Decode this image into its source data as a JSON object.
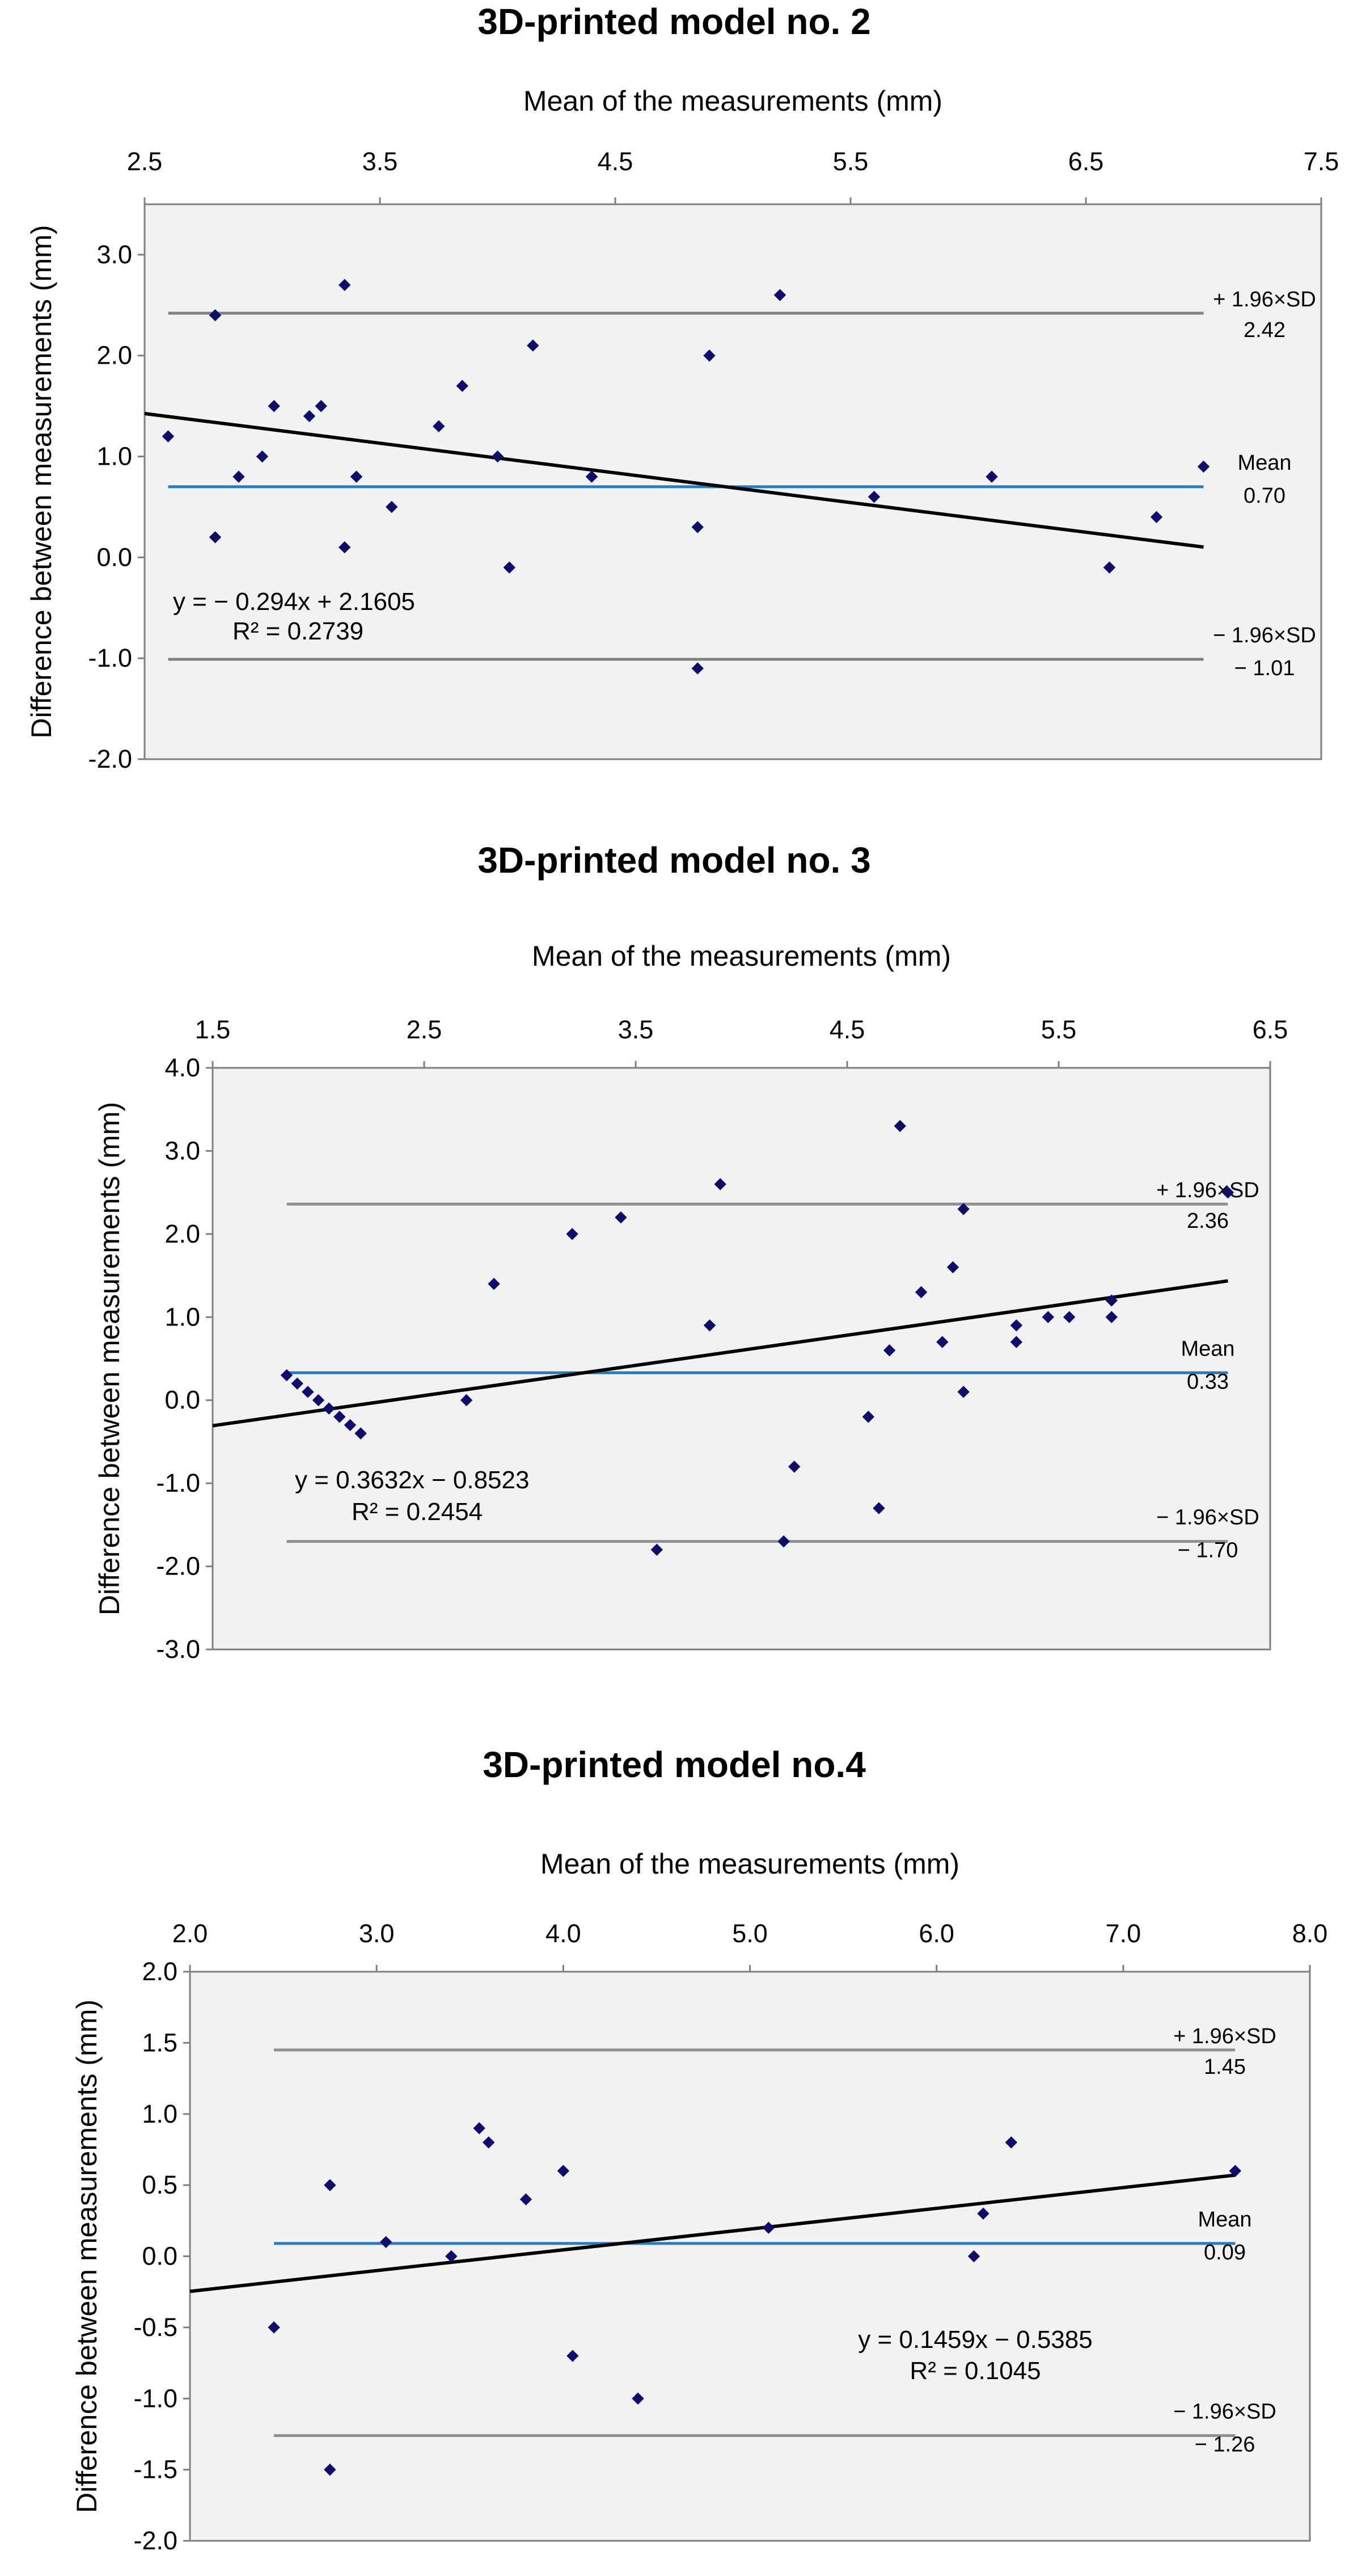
{
  "chart_data": [
    {
      "type": "scatter",
      "title": "3D-printed model no. 2",
      "xlabel": "Mean of the measurements (mm)",
      "ylabel": "Difference between measurements (mm)",
      "xlim": [
        2.5,
        7.5
      ],
      "ylim": [
        -2.0,
        3.5
      ],
      "xticks": [
        "2.5",
        "3.5",
        "4.5",
        "5.5",
        "6.5",
        "7.5"
      ],
      "yticks": [
        "3.0",
        "2.0",
        "1.0",
        "0.0",
        "-1.0",
        "-2.0"
      ],
      "points": [
        [
          2.6,
          1.2
        ],
        [
          2.8,
          2.4
        ],
        [
          2.8,
          0.2
        ],
        [
          2.9,
          0.8
        ],
        [
          3.0,
          1.0
        ],
        [
          3.05,
          1.5
        ],
        [
          3.2,
          1.4
        ],
        [
          3.25,
          1.5
        ],
        [
          3.35,
          2.7
        ],
        [
          3.35,
          0.1
        ],
        [
          3.4,
          0.8
        ],
        [
          3.55,
          0.5
        ],
        [
          3.75,
          1.3
        ],
        [
          3.85,
          1.7
        ],
        [
          4.0,
          1.0
        ],
        [
          4.05,
          -0.1
        ],
        [
          4.15,
          2.1
        ],
        [
          4.4,
          0.8
        ],
        [
          4.85,
          0.3
        ],
        [
          4.85,
          -1.1
        ],
        [
          4.9,
          2.0
        ],
        [
          5.2,
          2.6
        ],
        [
          5.6,
          0.6
        ],
        [
          6.1,
          0.8
        ],
        [
          6.6,
          -0.1
        ],
        [
          6.8,
          0.4
        ],
        [
          7.0,
          0.9
        ]
      ],
      "regression": {
        "slope": -0.294,
        "intercept": 2.1605,
        "x_range": [
          2.5,
          7.0
        ],
        "equation": "y = − 0.294x + 2.1605",
        "r2": "R² = 0.2739"
      },
      "mean_line": {
        "value": 0.7,
        "label": "Mean",
        "value_label": "0.70"
      },
      "upper_loa": {
        "value": 2.42,
        "label": "+ 1.96×SD",
        "value_label": "2.42"
      },
      "lower_loa": {
        "value": -1.01,
        "label": "− 1.96×SD",
        "value_label": "− 1.01"
      },
      "hline_x_range": [
        2.6,
        7.0
      ]
    },
    {
      "type": "scatter",
      "title": "3D-printed model no. 3",
      "xlabel": "Mean of the measurements (mm)",
      "ylabel": "Difference between measurements (mm)",
      "xlim": [
        1.5,
        6.5
      ],
      "ylim": [
        -3.0,
        4.0
      ],
      "xticks": [
        "1.5",
        "2.5",
        "3.5",
        "4.5",
        "5.5",
        "6.5"
      ],
      "yticks": [
        "4.0",
        "3.0",
        "2.0",
        "1.0",
        "0.0",
        "-1.0",
        "-2.0",
        "-3.0"
      ],
      "points": [
        [
          1.85,
          0.3
        ],
        [
          1.9,
          0.2
        ],
        [
          1.95,
          0.1
        ],
        [
          2.0,
          0.0
        ],
        [
          2.05,
          -0.1
        ],
        [
          2.1,
          -0.2
        ],
        [
          2.15,
          -0.3
        ],
        [
          2.2,
          -0.4
        ],
        [
          2.7,
          0.0
        ],
        [
          2.83,
          1.4
        ],
        [
          3.2,
          2.0
        ],
        [
          3.43,
          2.2
        ],
        [
          3.6,
          -1.8
        ],
        [
          3.85,
          0.9
        ],
        [
          3.9,
          2.6
        ],
        [
          4.2,
          -1.7
        ],
        [
          4.25,
          -0.8
        ],
        [
          4.6,
          -0.2
        ],
        [
          4.65,
          -1.3
        ],
        [
          4.7,
          0.6
        ],
        [
          4.75,
          3.3
        ],
        [
          4.85,
          1.3
        ],
        [
          4.95,
          0.7
        ],
        [
          5.0,
          1.6
        ],
        [
          5.05,
          0.1
        ],
        [
          5.05,
          2.3
        ],
        [
          5.3,
          0.9
        ],
        [
          5.3,
          0.7
        ],
        [
          5.45,
          1.0
        ],
        [
          5.55,
          1.0
        ],
        [
          5.75,
          1.2
        ],
        [
          5.75,
          1.0
        ],
        [
          6.3,
          2.5
        ]
      ],
      "regression": {
        "slope": 0.3632,
        "intercept": -0.8523,
        "x_range": [
          1.5,
          6.3
        ],
        "equation": "y = 0.3632x − 0.8523",
        "r2": "R² = 0.2454"
      },
      "mean_line": {
        "value": 0.33,
        "label": "Mean",
        "value_label": "0.33"
      },
      "upper_loa": {
        "value": 2.36,
        "label": "+ 1.96×SD",
        "value_label": "2.36"
      },
      "lower_loa": {
        "value": -1.7,
        "label": "− 1.96×SD",
        "value_label": "− 1.70"
      },
      "hline_x_range": [
        1.85,
        6.3
      ]
    },
    {
      "type": "scatter",
      "title": "3D-printed model no.4",
      "xlabel": "Mean of the measurements (mm)",
      "ylabel": "Difference between measurements (mm)",
      "xlim": [
        2.0,
        8.0
      ],
      "ylim": [
        -2.0,
        2.0
      ],
      "xticks": [
        "2.0",
        "3.0",
        "4.0",
        "5.0",
        "6.0",
        "7.0",
        "8.0"
      ],
      "yticks": [
        "2.0",
        "1.5",
        "1.0",
        "0.5",
        "0.0",
        "-0.5",
        "-1.0",
        "-1.5",
        "-2.0"
      ],
      "points": [
        [
          2.45,
          -0.5
        ],
        [
          2.75,
          0.5
        ],
        [
          2.75,
          -1.5
        ],
        [
          3.05,
          0.1
        ],
        [
          3.4,
          0.0
        ],
        [
          3.55,
          0.9
        ],
        [
          3.6,
          0.8
        ],
        [
          3.8,
          0.4
        ],
        [
          4.0,
          0.6
        ],
        [
          4.05,
          -0.7
        ],
        [
          4.4,
          -1.0
        ],
        [
          5.1,
          0.2
        ],
        [
          6.2,
          0.0
        ],
        [
          6.25,
          0.3
        ],
        [
          6.4,
          0.8
        ],
        [
          7.6,
          0.6
        ]
      ],
      "regression": {
        "slope": 0.1459,
        "intercept": -0.5385,
        "x_range": [
          2.0,
          7.6
        ],
        "equation": "y = 0.1459x − 0.5385",
        "r2": "R² = 0.1045"
      },
      "mean_line": {
        "value": 0.09,
        "label": "Mean",
        "value_label": "0.09"
      },
      "upper_loa": {
        "value": 1.45,
        "label": "+ 1.96×SD",
        "value_label": "1.45"
      },
      "lower_loa": {
        "value": -1.26,
        "label": "− 1.96×SD",
        "value_label": "− 1.26"
      },
      "hline_x_range": [
        2.45,
        7.6
      ]
    }
  ]
}
